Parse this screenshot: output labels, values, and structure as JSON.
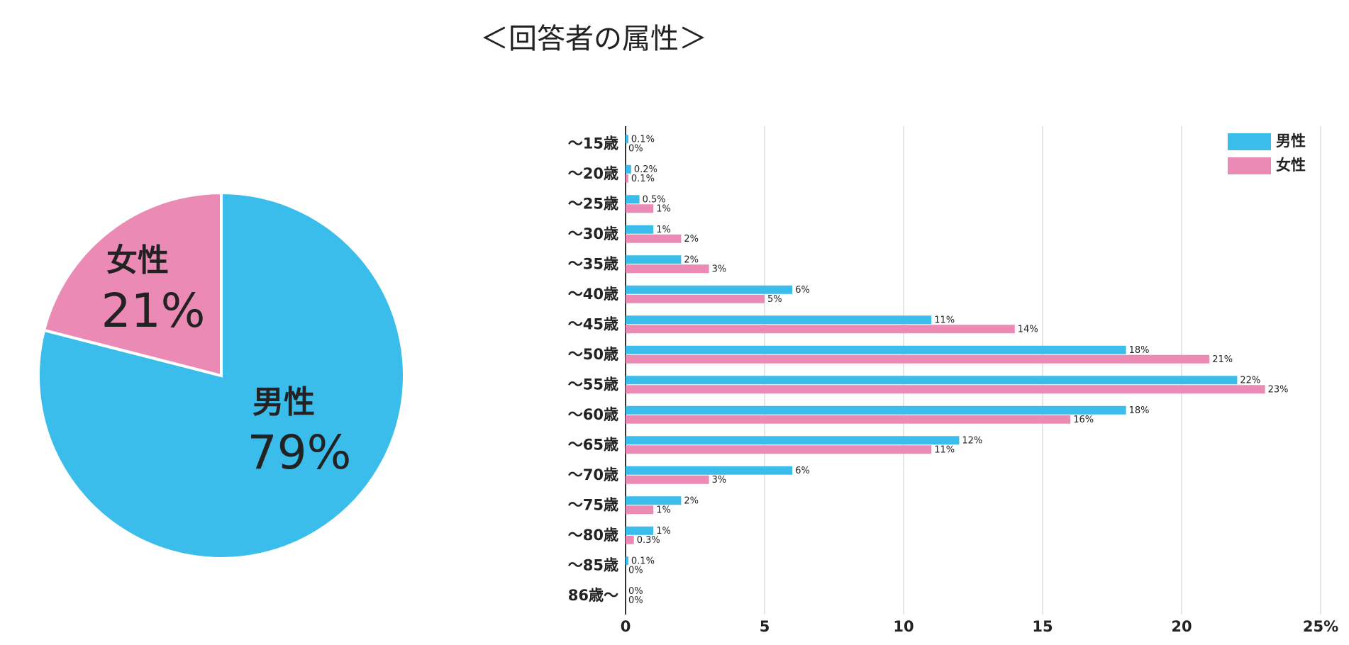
{
  "title": "＜回答者の属性＞",
  "chart_data": [
    {
      "type": "pie",
      "categories": [
        "男性",
        "女性"
      ],
      "values": [
        79,
        21
      ],
      "value_labels": [
        "79%",
        "21%"
      ],
      "colors": [
        "#3bbdec",
        "#ec8ab6"
      ]
    },
    {
      "type": "barh",
      "categories": [
        "～15歳",
        "～20歳",
        "～25歳",
        "～30歳",
        "～35歳",
        "～40歳",
        "～45歳",
        "～50歳",
        "～55歳",
        "～60歳",
        "～65歳",
        "～70歳",
        "～75歳",
        "～80歳",
        "～85歳",
        "86歳～"
      ],
      "series": [
        {
          "name": "男性",
          "color": "#3bbdec",
          "values": [
            0.1,
            0.2,
            0.5,
            1,
            2,
            6,
            11,
            18,
            22,
            18,
            12,
            6,
            2,
            1,
            0.1,
            0
          ],
          "value_labels": [
            "0.1%",
            "0.2%",
            "0.5%",
            "1%",
            "2%",
            "6%",
            "11%",
            "18%",
            "22%",
            "18%",
            "12%",
            "6%",
            "2%",
            "1%",
            "0.1%",
            "0%"
          ]
        },
        {
          "name": "女性",
          "color": "#ec8ab6",
          "values": [
            0,
            0.1,
            1,
            2,
            3,
            5,
            14,
            21,
            23,
            16,
            11,
            3,
            1,
            0.3,
            0,
            0
          ],
          "value_labels": [
            "0%",
            "0.1%",
            "1%",
            "2%",
            "3%",
            "5%",
            "14%",
            "21%",
            "23%",
            "16%",
            "11%",
            "3%",
            "1%",
            "0.3%",
            "0%",
            "0%"
          ]
        }
      ],
      "xlim": [
        0,
        25
      ],
      "xticks": [
        0,
        5,
        10,
        15,
        20,
        {
          "value": 25,
          "label": "25%"
        }
      ],
      "grid": true,
      "legend": "top-right"
    }
  ]
}
